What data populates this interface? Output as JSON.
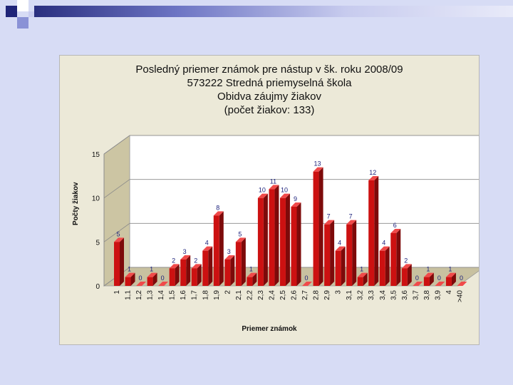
{
  "chart_data": {
    "type": "bar",
    "title_lines": [
      "Posledný priemer známok pre nástup v šk. roku 2008/09",
      "573222 Stredná priemyselná škola",
      "Obidva záujmy žiakov",
      "(počet žiakov: 133)"
    ],
    "xlabel": "Priemer známok",
    "ylabel": "Počty žiakov",
    "ylim": [
      0,
      15
    ],
    "yticks": [
      "0",
      "5",
      "10",
      "15"
    ],
    "categories": [
      "1",
      "1,1",
      "1,2",
      "1,3",
      "1,4",
      "1,5",
      "1,6",
      "1,7",
      "1,8",
      "1,9",
      "2",
      "2,1",
      "2,2",
      "2,3",
      "2,4",
      "2,5",
      "2,6",
      "2,7",
      "2,8",
      "2,9",
      "3",
      "3,1",
      "3,2",
      "3,3",
      "3,4",
      "3,5",
      "3,6",
      "3,7",
      "3,8",
      "3,9",
      "4",
      ">40"
    ],
    "values": [
      5,
      1,
      0,
      1,
      0,
      2,
      3,
      2,
      4,
      8,
      3,
      5,
      1,
      10,
      11,
      10,
      9,
      0,
      13,
      7,
      4,
      7,
      1,
      12,
      4,
      6,
      2,
      0,
      1,
      0,
      1,
      0
    ],
    "bar_color": "#cc1111",
    "grid": true
  }
}
